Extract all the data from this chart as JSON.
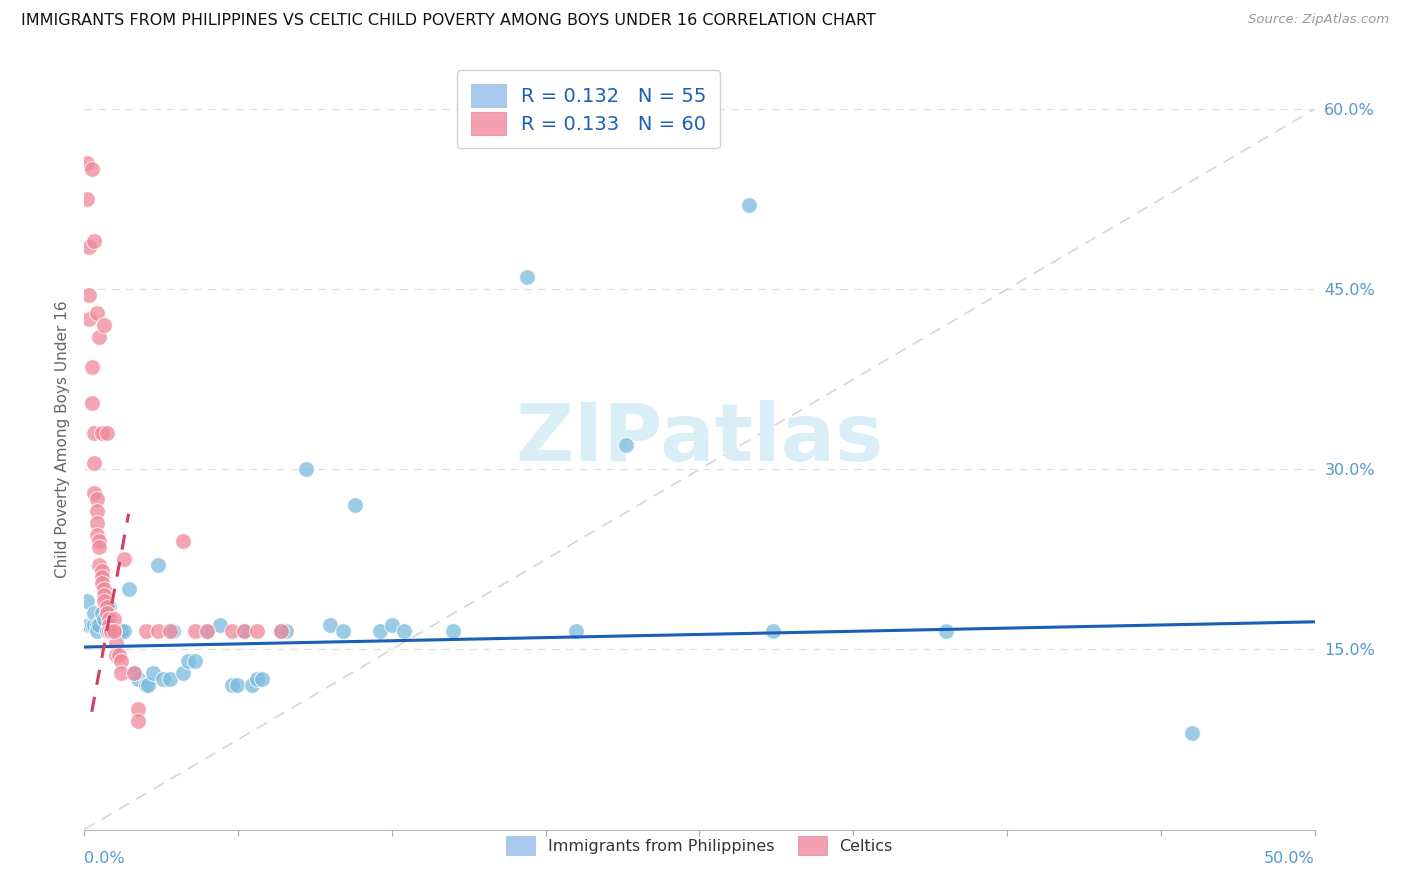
{
  "title": "IMMIGRANTS FROM PHILIPPINES VS CELTIC CHILD POVERTY AMONG BOYS UNDER 16 CORRELATION CHART",
  "source": "Source: ZipAtlas.com",
  "ylabel": "Child Poverty Among Boys Under 16",
  "xlim": [
    0.0,
    0.5
  ],
  "ylim": [
    0.0,
    0.65
  ],
  "right_yticks": [
    0.15,
    0.3,
    0.45,
    0.6
  ],
  "right_ytick_labels": [
    "15.0%",
    "30.0%",
    "45.0%",
    "60.0%"
  ],
  "xtick_positions": [
    0.0,
    0.0625,
    0.125,
    0.1875,
    0.25,
    0.3125,
    0.375,
    0.4375,
    0.5
  ],
  "blue_r": "0.132",
  "blue_n": "55",
  "pink_r": "0.133",
  "pink_n": "60",
  "blue_scatter_color": "#7bbcdd",
  "pink_scatter_color": "#f08898",
  "blue_line_color": "#1a5eb8",
  "pink_line_color": "#d04060",
  "legend_box_color": "#a8c8f0",
  "legend_box_color2": "#f4a0b0",
  "watermark_color": "#daeef8",
  "grid_color": "#e0e0e0",
  "ref_line_color": "#cccccc",
  "blue_points_x": [
    0.001,
    0.002,
    0.002,
    0.003,
    0.004,
    0.004,
    0.005,
    0.005,
    0.006,
    0.007,
    0.008,
    0.009,
    0.01,
    0.012,
    0.013,
    0.015,
    0.016,
    0.018,
    0.02,
    0.022,
    0.025,
    0.026,
    0.028,
    0.03,
    0.032,
    0.035,
    0.036,
    0.04,
    0.042,
    0.045,
    0.05,
    0.055,
    0.06,
    0.062,
    0.065,
    0.068,
    0.07,
    0.072,
    0.08,
    0.082,
    0.09,
    0.1,
    0.105,
    0.11,
    0.12,
    0.125,
    0.13,
    0.15,
    0.18,
    0.2,
    0.22,
    0.27,
    0.28,
    0.35,
    0.45
  ],
  "blue_points_y": [
    0.19,
    0.17,
    0.17,
    0.17,
    0.17,
    0.18,
    0.17,
    0.165,
    0.17,
    0.18,
    0.175,
    0.165,
    0.185,
    0.165,
    0.165,
    0.165,
    0.165,
    0.2,
    0.13,
    0.125,
    0.12,
    0.12,
    0.13,
    0.22,
    0.125,
    0.125,
    0.165,
    0.13,
    0.14,
    0.14,
    0.165,
    0.17,
    0.12,
    0.12,
    0.165,
    0.12,
    0.125,
    0.125,
    0.165,
    0.165,
    0.3,
    0.17,
    0.165,
    0.27,
    0.165,
    0.17,
    0.165,
    0.165,
    0.46,
    0.165,
    0.32,
    0.52,
    0.165,
    0.165,
    0.08
  ],
  "pink_points_x": [
    0.001,
    0.001,
    0.002,
    0.002,
    0.002,
    0.003,
    0.003,
    0.004,
    0.004,
    0.004,
    0.005,
    0.005,
    0.005,
    0.005,
    0.006,
    0.006,
    0.006,
    0.007,
    0.007,
    0.007,
    0.008,
    0.008,
    0.008,
    0.009,
    0.009,
    0.01,
    0.01,
    0.011,
    0.011,
    0.012,
    0.012,
    0.013,
    0.013,
    0.014,
    0.015,
    0.015,
    0.016,
    0.02,
    0.022,
    0.022,
    0.025,
    0.03,
    0.035,
    0.04,
    0.045,
    0.05,
    0.06,
    0.065,
    0.07,
    0.08,
    0.003,
    0.004,
    0.005,
    0.006,
    0.007,
    0.008,
    0.009,
    0.01,
    0.011,
    0.012
  ],
  "pink_points_y": [
    0.555,
    0.525,
    0.485,
    0.445,
    0.425,
    0.385,
    0.355,
    0.33,
    0.305,
    0.28,
    0.275,
    0.265,
    0.255,
    0.245,
    0.24,
    0.235,
    0.22,
    0.215,
    0.21,
    0.205,
    0.2,
    0.195,
    0.19,
    0.185,
    0.18,
    0.175,
    0.17,
    0.165,
    0.165,
    0.165,
    0.175,
    0.155,
    0.145,
    0.145,
    0.14,
    0.13,
    0.225,
    0.13,
    0.1,
    0.09,
    0.165,
    0.165,
    0.165,
    0.24,
    0.165,
    0.165,
    0.165,
    0.165,
    0.165,
    0.165,
    0.55,
    0.49,
    0.43,
    0.41,
    0.33,
    0.42,
    0.33,
    0.165,
    0.165,
    0.165
  ]
}
